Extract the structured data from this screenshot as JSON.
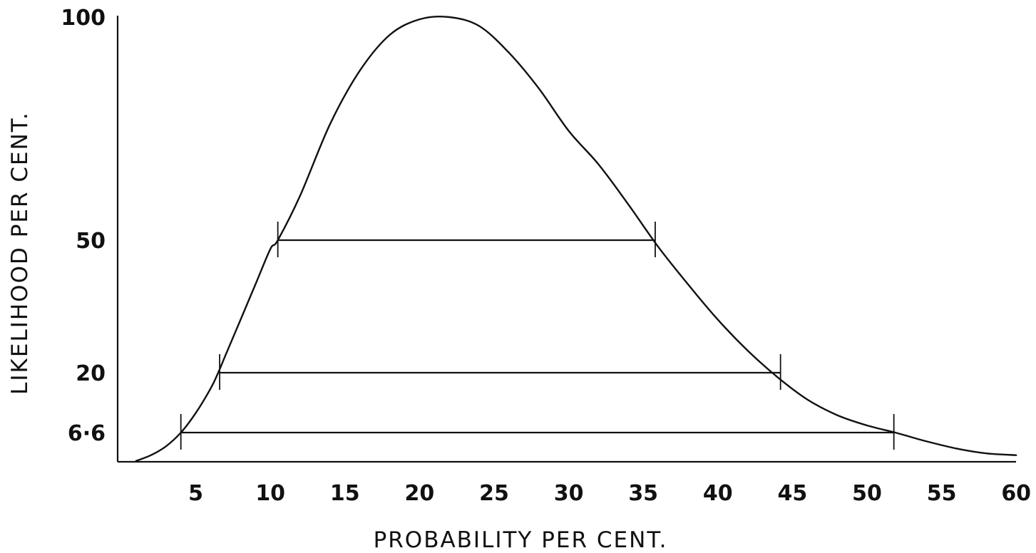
{
  "chart_data": {
    "type": "line",
    "title": "",
    "xlabel": "PROBABILITY PER CENT.",
    "ylabel": "LIKELIHOOD PER CENT.",
    "xlim": [
      0,
      60
    ],
    "x_ticks": [
      5,
      10,
      15,
      20,
      25,
      30,
      35,
      40,
      45,
      50,
      55,
      60
    ],
    "y_ticks": [
      {
        "value": 6.6,
        "label": "6·6"
      },
      {
        "value": 20,
        "label": "20"
      },
      {
        "value": 50,
        "label": "50"
      },
      {
        "value": 100,
        "label": "100"
      }
    ],
    "grid": false,
    "legend": "none",
    "series": [
      {
        "x": [
          1,
          2,
          3,
          4,
          5,
          6,
          6.5,
          7,
          8,
          9,
          10,
          10.5,
          12,
          14,
          16,
          18,
          20,
          22,
          24,
          26,
          28,
          30,
          32,
          34,
          36,
          38,
          40,
          42,
          44,
          46,
          48,
          50,
          52,
          54,
          56,
          58,
          60
        ],
        "y": [
          0.2,
          1.5,
          3.5,
          6.6,
          11,
          16.5,
          20,
          24,
          32,
          40,
          48,
          50,
          60,
          76,
          88,
          96,
          99.5,
          100,
          98,
          92,
          84,
          74.5,
          67,
          58,
          48.5,
          40,
          32,
          25,
          19,
          14,
          10.5,
          8.2,
          6.5,
          4.6,
          3,
          1.9,
          1.5
        ]
      }
    ],
    "intervals": [
      {
        "likelihood": 50,
        "x_low": 10.5,
        "x_high": 35.8
      },
      {
        "likelihood": 20,
        "x_low": 6.6,
        "x_high": 44.2
      },
      {
        "likelihood": 6.6,
        "x_low": 4.0,
        "x_high": 51.8
      }
    ]
  }
}
